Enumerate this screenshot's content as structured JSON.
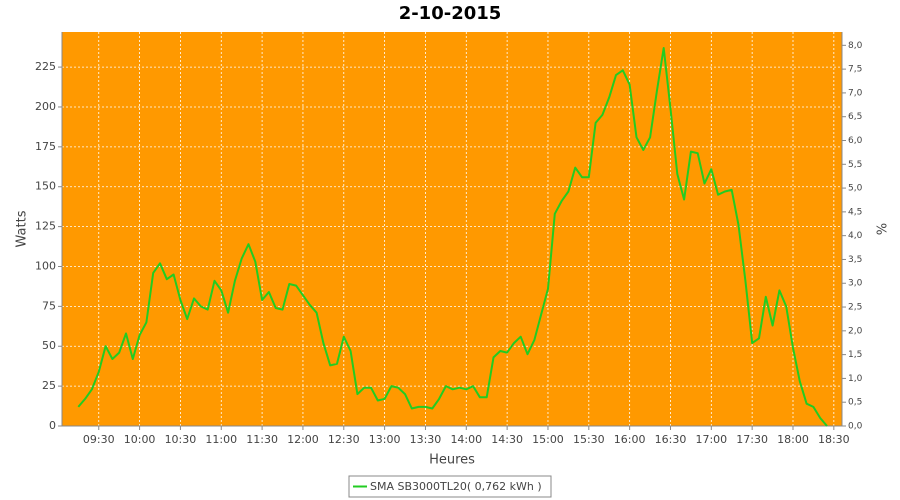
{
  "chart_data": {
    "type": "line",
    "title": "2-10-2015",
    "xlabel": "Heures",
    "ylabel": "Watts",
    "y2label": "%",
    "x": [
      "09:15",
      "09:20",
      "09:25",
      "09:30",
      "09:35",
      "09:40",
      "09:45",
      "09:50",
      "09:55",
      "10:00",
      "10:05",
      "10:10",
      "10:15",
      "10:20",
      "10:25",
      "10:30",
      "10:35",
      "10:40",
      "10:45",
      "10:50",
      "10:55",
      "11:00",
      "11:05",
      "11:10",
      "11:15",
      "11:20",
      "11:25",
      "11:30",
      "11:35",
      "11:40",
      "11:45",
      "11:50",
      "11:55",
      "12:00",
      "12:05",
      "12:10",
      "12:15",
      "12:20",
      "12:25",
      "12:30",
      "12:35",
      "12:40",
      "12:45",
      "12:50",
      "12:55",
      "13:00",
      "13:05",
      "13:10",
      "13:15",
      "13:20",
      "13:25",
      "13:30",
      "13:35",
      "13:40",
      "13:45",
      "13:50",
      "13:55",
      "14:00",
      "14:05",
      "14:10",
      "14:15",
      "14:20",
      "14:25",
      "14:30",
      "14:35",
      "14:40",
      "14:45",
      "14:50",
      "14:55",
      "15:00",
      "15:05",
      "15:10",
      "15:15",
      "15:20",
      "15:25",
      "15:30",
      "15:35",
      "15:40",
      "15:45",
      "15:50",
      "15:55",
      "16:00",
      "16:05",
      "16:10",
      "16:15",
      "16:20",
      "16:25",
      "16:30",
      "16:35",
      "16:40",
      "16:45",
      "16:50",
      "16:55",
      "17:00",
      "17:05",
      "17:10",
      "17:15",
      "17:20",
      "17:25",
      "17:30",
      "17:35",
      "17:40",
      "17:45",
      "17:50",
      "17:55",
      "18:00",
      "18:05",
      "18:10",
      "18:15",
      "18:20",
      "18:25"
    ],
    "series": [
      {
        "name": "SMA SB3000TL20( 0,762 kWh )",
        "color": "#22cc22",
        "values": [
          12,
          17,
          23,
          34,
          50,
          42,
          46,
          58,
          42,
          57,
          65,
          96,
          102,
          92,
          95,
          79,
          67,
          80,
          75,
          73,
          91,
          85,
          71,
          91,
          105,
          114,
          103,
          79,
          84,
          74,
          73,
          89,
          88,
          82,
          76,
          71,
          52,
          38,
          39,
          56,
          47,
          20,
          24,
          24,
          16,
          17,
          25,
          24,
          20,
          11,
          12,
          12,
          11,
          17,
          25,
          23,
          24,
          23,
          25,
          18,
          18,
          43,
          47,
          46,
          52,
          56,
          45,
          54,
          70,
          86,
          133,
          141,
          147,
          162,
          156,
          156,
          190,
          195,
          206,
          220,
          223,
          214,
          181,
          173,
          181,
          210,
          237,
          199,
          158,
          142,
          172,
          171,
          152,
          161,
          145,
          147,
          148,
          126,
          91,
          52,
          55,
          81,
          63,
          85,
          75,
          49,
          28,
          14,
          12,
          5,
          0
        ]
      }
    ],
    "xlim": [
      "09:03",
      "18:36"
    ],
    "xticks": [
      "09:30",
      "10:00",
      "10:30",
      "11:00",
      "11:30",
      "12:00",
      "12:30",
      "13:00",
      "13:30",
      "14:00",
      "14:30",
      "15:00",
      "15:30",
      "16:00",
      "16:30",
      "17:00",
      "17:30",
      "18:00",
      "18:30"
    ],
    "ylim": [
      0,
      247
    ],
    "yticks": [
      0,
      25,
      50,
      75,
      100,
      125,
      150,
      175,
      200,
      225
    ],
    "y2lim": [
      0,
      8.28
    ],
    "y2ticks": [
      {
        "value": 0,
        "label": "0,0"
      },
      {
        "value": 0.5,
        "label": "0,5"
      },
      {
        "value": 1,
        "label": "1,0"
      },
      {
        "value": 1.5,
        "label": "1,5"
      },
      {
        "value": 2,
        "label": "2,0"
      },
      {
        "value": 2.5,
        "label": "2,5"
      },
      {
        "value": 3,
        "label": "3,0"
      },
      {
        "value": 3.5,
        "label": "3,5"
      },
      {
        "value": 4,
        "label": "4,0"
      },
      {
        "value": 4.5,
        "label": "4,5"
      },
      {
        "value": 5,
        "label": "5,0"
      },
      {
        "value": 5.5,
        "label": "5,5"
      },
      {
        "value": 6,
        "label": "6,0"
      },
      {
        "value": 6.5,
        "label": "6,5"
      },
      {
        "value": 7,
        "label": "7,0"
      },
      {
        "value": 7.5,
        "label": "7,5"
      },
      {
        "value": 8,
        "label": "8,0"
      }
    ],
    "grid": true,
    "background": "#ff9900",
    "legend": "bottom"
  }
}
